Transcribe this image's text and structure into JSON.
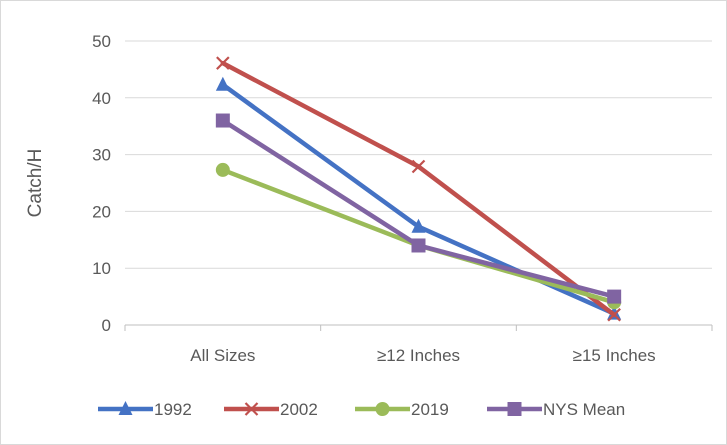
{
  "chart_data": {
    "type": "line",
    "categories": [
      "All Sizes",
      "≥12 Inches",
      "≥15 Inches"
    ],
    "ylabel": "Catch/H",
    "xlabel": "",
    "ylim": [
      0,
      50
    ],
    "yticks": [
      0,
      10,
      20,
      30,
      40,
      50
    ],
    "grid": true,
    "legend_position": "bottom",
    "series": [
      {
        "name": "1992",
        "values": [
          42.3,
          17.3,
          2.0
        ],
        "color": "#4472C4",
        "marker": "triangle"
      },
      {
        "name": "2002",
        "values": [
          46.1,
          27.9,
          1.8
        ],
        "color": "#C0504D",
        "marker": "x"
      },
      {
        "name": "2019",
        "values": [
          27.3,
          14.0,
          4.0
        ],
        "color": "#9BBB59",
        "marker": "circle"
      },
      {
        "name": "NYS Mean",
        "values": [
          36.0,
          14.0,
          5.0
        ],
        "color": "#8064A2",
        "marker": "square"
      }
    ]
  }
}
